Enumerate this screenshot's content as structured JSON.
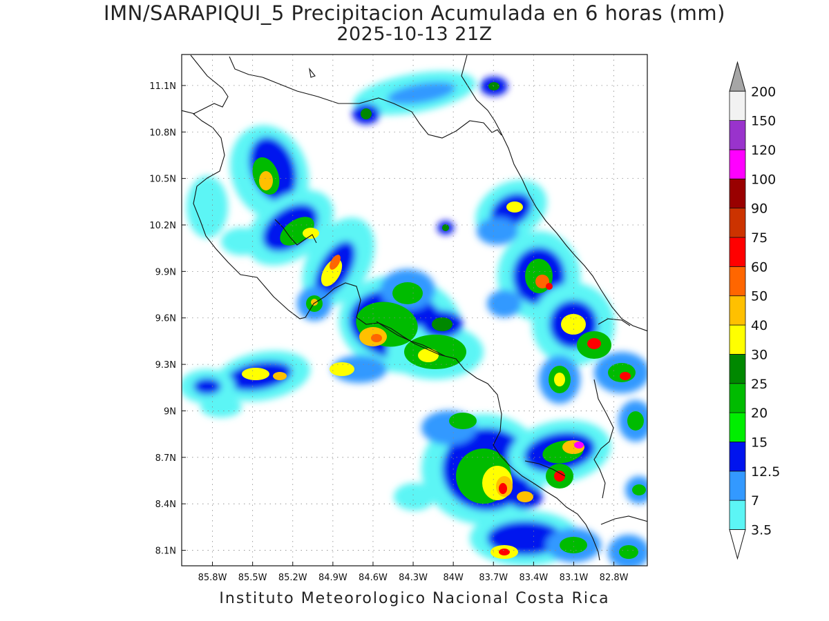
{
  "title": {
    "line1": "IMN/SARAPIQUI_5 Precipitacion Acumulada en 6 horas (mm)",
    "line2": "2025-10-13 21Z"
  },
  "footer": "Instituto Meteorologico Nacional Costa Rica",
  "map": {
    "type": "precipitation-field",
    "region": "Costa Rica",
    "lon_range": [
      -86.03,
      -82.55
    ],
    "lat_range": [
      8.0,
      11.3
    ],
    "x_tick_labels": [
      "85.8W",
      "85.5W",
      "85.2W",
      "84.9W",
      "84.6W",
      "84.3W",
      "84W",
      "83.7W",
      "83.4W",
      "83.1W",
      "82.8W"
    ],
    "x_tick_values": [
      -85.8,
      -85.5,
      -85.2,
      -84.9,
      -84.6,
      -84.3,
      -84.0,
      -83.7,
      -83.4,
      -83.1,
      -82.8
    ],
    "y_tick_labels": [
      "8.1N",
      "8.4N",
      "8.7N",
      "9N",
      "9.3N",
      "9.6N",
      "9.9N",
      "10.2N",
      "10.5N",
      "10.8N",
      "11.1N"
    ],
    "y_tick_values": [
      8.1,
      8.4,
      8.7,
      9.0,
      9.3,
      9.6,
      9.9,
      10.2,
      10.5,
      10.8,
      11.1
    ],
    "grid": "dotted"
  },
  "colorbar": {
    "levels": [
      "3.5",
      "7",
      "12.5",
      "15",
      "20",
      "25",
      "30",
      "40",
      "50",
      "60",
      "75",
      "90",
      "100",
      "120",
      "150",
      "200"
    ],
    "colors": [
      "#5cf5f5",
      "#3399ff",
      "#0014ee",
      "#00ee00",
      "#00bb00",
      "#008800",
      "#ffff00",
      "#ffc000",
      "#ff6600",
      "#ff0000",
      "#cc3300",
      "#990000",
      "#ff00ff",
      "#9933cc",
      "#f2f2f2"
    ],
    "top_arrow_color": "#a6a6a6",
    "bottom_arrow_color": "#ffffff"
  }
}
